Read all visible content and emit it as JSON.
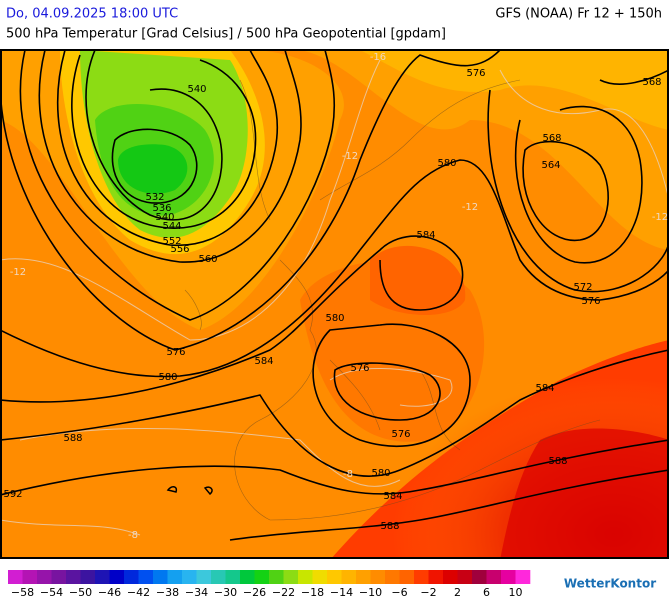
{
  "header": {
    "valid_time": "Do, 04.09.2025 18:00 UTC",
    "model_run": "GFS (NOAA) Fr 12 + 150h",
    "title": "500 hPa Temperatur [Grad Celsius] / 500 hPa Geopotential [gpdam]"
  },
  "map": {
    "geopotential_labels": [
      540,
      536,
      532,
      540,
      544,
      552,
      556,
      560,
      576,
      580,
      584,
      588,
      592,
      576,
      580,
      584,
      568,
      564,
      568,
      572,
      576,
      580,
      576,
      576,
      580,
      584,
      588,
      584,
      588
    ],
    "temperature_labels": [
      -12,
      -12,
      -16,
      -8,
      -8,
      -12,
      -12
    ]
  },
  "colorbar": {
    "colors": [
      "#d21ed2",
      "#b414b4",
      "#9614aa",
      "#7814a0",
      "#5a14a0",
      "#3c14a0",
      "#1e14b4",
      "#0000c8",
      "#0028dc",
      "#0050f0",
      "#0078f0",
      "#14a0f0",
      "#28b4f0",
      "#3cc8dc",
      "#28c8b4",
      "#14c88c",
      "#00c83c",
      "#14d214",
      "#50d214",
      "#8cdc14",
      "#c8e600",
      "#f0dc00",
      "#ffc800",
      "#ffb400",
      "#ffa000",
      "#ff8c00",
      "#ff7800",
      "#ff6400",
      "#ff3c00",
      "#f01400",
      "#dc0000",
      "#c80014",
      "#a0003c",
      "#c8006e",
      "#e600a0",
      "#ff28dc"
    ],
    "labels": [
      "−58",
      "−54",
      "−50",
      "−46",
      "−42",
      "−38",
      "−34",
      "−30",
      "−26",
      "−22",
      "−18",
      "−14",
      "−10",
      "−6",
      "−2",
      "2",
      "6",
      "10"
    ]
  },
  "logo": "WetterKontor"
}
